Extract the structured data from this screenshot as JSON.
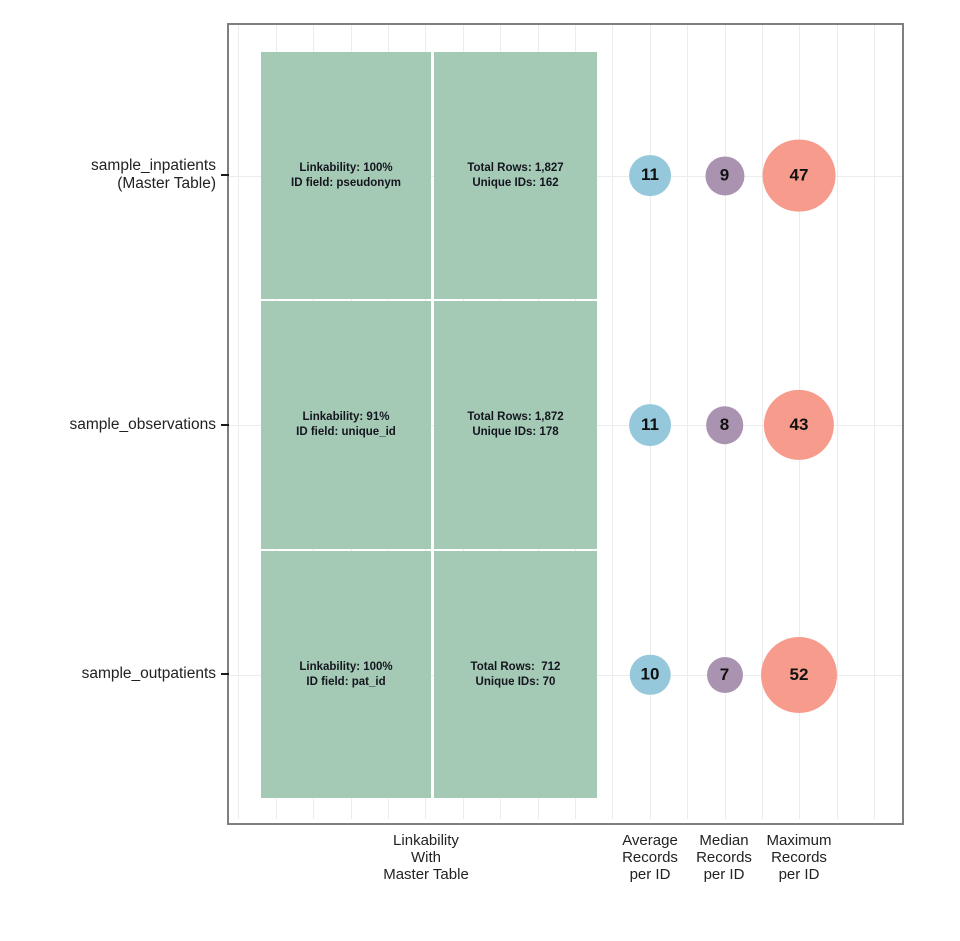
{
  "colors": {
    "tile_green": "#A4C9B4",
    "bubble_blue": "#95C8DA",
    "bubble_purple": "#AA93B1",
    "bubble_salmon": "#F79C8D",
    "gridline": "#ECECEC",
    "panel_border": "#7F7F7F",
    "tile_text": "#15151F",
    "axis_text": "#222222",
    "bubble_text": "#111111"
  },
  "y_axis": {
    "labels": [
      {
        "text": "sample_inpatients\n(Master Table)"
      },
      {
        "text": "sample_observations"
      },
      {
        "text": "sample_outpatients"
      }
    ]
  },
  "x_axis": {
    "labels": [
      {
        "text": "Linkability\nWith\nMaster Table"
      },
      {
        "text": "Average\nRecords\nper ID"
      },
      {
        "text": "Median\nRecords\nper ID"
      },
      {
        "text": "Maximum\nRecords\nper ID"
      }
    ]
  },
  "chart_data": {
    "type": "bubble",
    "grid": true,
    "size_range": [
      7,
      52
    ],
    "columns": [
      "Linkability With Master Table",
      "Average Records per ID",
      "Median Records per ID",
      "Maximum Records per ID"
    ],
    "rows": [
      {
        "table": "sample_inpatients (Master Table)",
        "linkability_percent": 100,
        "id_field": "pseudonym",
        "total_rows": 1827,
        "unique_ids": 162,
        "avg_records_per_id": 11,
        "median_records_per_id": 9,
        "max_records_per_id": 47,
        "cells": {
          "link": "Linkability: 100%\nID field: pseudonym",
          "stats": "Total Rows: 1,827\nUnique IDs: 162"
        }
      },
      {
        "table": "sample_observations",
        "linkability_percent": 91,
        "id_field": "unique_id",
        "total_rows": 1872,
        "unique_ids": 178,
        "avg_records_per_id": 11,
        "median_records_per_id": 8,
        "max_records_per_id": 43,
        "cells": {
          "link": "Linkability: 91%\nID field: unique_id",
          "stats": "Total Rows: 1,872\nUnique IDs: 178"
        }
      },
      {
        "table": "sample_outpatients",
        "linkability_percent": 100,
        "id_field": "pat_id",
        "total_rows": 712,
        "unique_ids": 70,
        "avg_records_per_id": 10,
        "median_records_per_id": 7,
        "max_records_per_id": 52,
        "cells": {
          "link": "Linkability: 100%\nID field: pat_id",
          "stats": "Total Rows:  712\nUnique IDs: 70"
        }
      }
    ]
  }
}
